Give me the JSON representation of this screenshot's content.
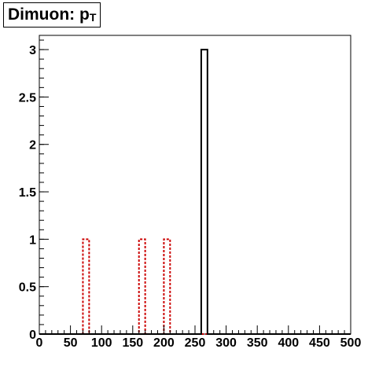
{
  "title": {
    "main": "Dimuon: p",
    "sub": "T"
  },
  "chart_data": {
    "type": "histogram",
    "title": "Dimuon: pT",
    "xlim": [
      0,
      500
    ],
    "ylim": [
      0,
      3.15
    ],
    "x_ticks": [
      0,
      50,
      100,
      150,
      200,
      250,
      300,
      350,
      400,
      450,
      500
    ],
    "x_tick_labels": [
      "0",
      "50",
      "100",
      "150",
      "200",
      "250",
      "300",
      "350",
      "400",
      "450",
      "500"
    ],
    "y_ticks": [
      0,
      0.5,
      1,
      1.5,
      2,
      2.5,
      3
    ],
    "y_tick_labels": [
      "0",
      "0.5",
      "1",
      "1.5",
      "2",
      "2.5",
      "3"
    ],
    "bin_width": 10,
    "grid": false,
    "series": [
      {
        "style": "solid",
        "color": "#000000",
        "bins": [
          {
            "x_low": 260,
            "x_high": 270,
            "count": 3
          }
        ]
      },
      {
        "style": "dashed",
        "color": "#cc0000",
        "bins": [
          {
            "x_low": 70,
            "x_high": 80,
            "count": 1
          },
          {
            "x_low": 160,
            "x_high": 170,
            "count": 1
          },
          {
            "x_low": 200,
            "x_high": 210,
            "count": 1
          }
        ]
      }
    ]
  }
}
